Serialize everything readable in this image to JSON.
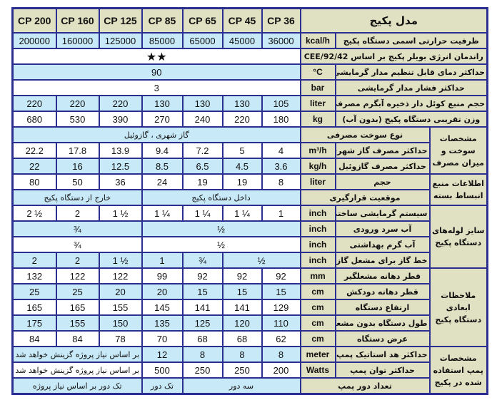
{
  "colors": {
    "border": "#2b2f8f",
    "header_bg": "#e0e0c2",
    "blue_row": "#c8e9f8",
    "white_row": "#ffffff"
  },
  "rows": [
    {
      "name": "header-row",
      "cells": [
        {
          "t": "CP 200",
          "c": "h model"
        },
        {
          "t": "CP 160",
          "c": "h model"
        },
        {
          "t": "CP 125",
          "c": "h model"
        },
        {
          "t": "CP 85",
          "c": "h model"
        },
        {
          "t": "CP 65",
          "c": "h model"
        },
        {
          "t": "CP 45",
          "c": "h model"
        },
        {
          "t": "CP 36",
          "c": "h model"
        },
        {
          "t": "مدل پکیج",
          "c": "h title",
          "span": 3
        }
      ]
    },
    {
      "name": "row-heat-capacity",
      "cells": [
        {
          "t": "200000",
          "c": "b val"
        },
        {
          "t": "160000",
          "c": "b val"
        },
        {
          "t": "125000",
          "c": "b val"
        },
        {
          "t": "85000",
          "c": "b val"
        },
        {
          "t": "65000",
          "c": "b val"
        },
        {
          "t": "45000",
          "c": "b val"
        },
        {
          "t": "36000",
          "c": "b val"
        },
        {
          "t": "kcal/h",
          "c": "h unit"
        },
        {
          "t": "ظرفیت حرارتی اسمی دستگاه پکیج",
          "c": "h lbl",
          "span": 2
        }
      ]
    },
    {
      "name": "row-energy-efficiency",
      "cells": [
        {
          "t": "★★",
          "c": "w star",
          "span": 7
        },
        {
          "t": "راندمان انرژی بویلر پکیج بر اساس 92/42/CEE",
          "c": "h lbl",
          "span": 3
        }
      ]
    },
    {
      "name": "row-max-temperature",
      "cells": [
        {
          "t": "90",
          "c": "b val",
          "span": 7
        },
        {
          "t": "°C",
          "c": "h unit"
        },
        {
          "t": "حداکثر دمای قابل تنظیم مدار گرمایشی",
          "c": "h lbl",
          "span": 2
        }
      ]
    },
    {
      "name": "row-max-pressure",
      "cells": [
        {
          "t": "3",
          "c": "w val",
          "span": 7
        },
        {
          "t": "bar",
          "c": "h unit"
        },
        {
          "t": "حداکثر فشار مدار گرمایشی",
          "c": "h lbl",
          "span": 2
        }
      ]
    },
    {
      "name": "row-coil-tank-volume",
      "cells": [
        {
          "t": "220",
          "c": "b val"
        },
        {
          "t": "220",
          "c": "b val"
        },
        {
          "t": "220",
          "c": "b val"
        },
        {
          "t": "130",
          "c": "b val"
        },
        {
          "t": "130",
          "c": "b val"
        },
        {
          "t": "130",
          "c": "b val"
        },
        {
          "t": "105",
          "c": "b val"
        },
        {
          "t": "liter",
          "c": "h unit"
        },
        {
          "t": "حجم منبع کوئل دار ذخیره آبگرم مصرفی",
          "c": "h lbl",
          "span": 2
        }
      ]
    },
    {
      "name": "row-weight",
      "cells": [
        {
          "t": "680",
          "c": "w val"
        },
        {
          "t": "530",
          "c": "w val"
        },
        {
          "t": "390",
          "c": "w val"
        },
        {
          "t": "270",
          "c": "w val"
        },
        {
          "t": "240",
          "c": "w val"
        },
        {
          "t": "220",
          "c": "w val"
        },
        {
          "t": "180",
          "c": "w val"
        },
        {
          "t": "kg",
          "c": "h unit"
        },
        {
          "t": "وزن تقریبی دستگاه پکیج (بدون آب)",
          "c": "h lbl",
          "span": 2
        }
      ]
    },
    {
      "name": "row-fuel-type",
      "cells": [
        {
          "t": "گاز شهری ، گازوئیل",
          "c": "b txt",
          "span": 7
        },
        {
          "t": "نوع سوخت مصرفی",
          "c": "h lbl",
          "span": 2
        },
        {
          "t": "مشخصات سوخت و میزان مصرف",
          "c": "h grp",
          "rowspan": 3
        }
      ]
    },
    {
      "name": "row-max-gas-consumption",
      "cells": [
        {
          "t": "22.2",
          "c": "w val"
        },
        {
          "t": "17.8",
          "c": "w val"
        },
        {
          "t": "13.9",
          "c": "w val"
        },
        {
          "t": "9.4",
          "c": "w val"
        },
        {
          "t": "7.2",
          "c": "w val"
        },
        {
          "t": "5",
          "c": "w val"
        },
        {
          "t": "4",
          "c": "w val"
        },
        {
          "t": "m³/h",
          "c": "h unit"
        },
        {
          "t": "حداکثر مصرف گاز شهری",
          "c": "h lbl"
        }
      ]
    },
    {
      "name": "row-max-diesel-consumption",
      "cells": [
        {
          "t": "22",
          "c": "b val"
        },
        {
          "t": "16",
          "c": "b val"
        },
        {
          "t": "12.5",
          "c": "b val"
        },
        {
          "t": "8.5",
          "c": "b val"
        },
        {
          "t": "6.5",
          "c": "b val"
        },
        {
          "t": "4.5",
          "c": "b val"
        },
        {
          "t": "3.6",
          "c": "b val"
        },
        {
          "t": "kg/h",
          "c": "h unit"
        },
        {
          "t": "حداکثر مصرف گازوئیل",
          "c": "h lbl"
        }
      ]
    },
    {
      "name": "row-expansion-tank-volume",
      "cells": [
        {
          "t": "80",
          "c": "w val"
        },
        {
          "t": "50",
          "c": "w val"
        },
        {
          "t": "36",
          "c": "w val"
        },
        {
          "t": "24",
          "c": "w val"
        },
        {
          "t": "19",
          "c": "w val"
        },
        {
          "t": "19",
          "c": "w val"
        },
        {
          "t": "8",
          "c": "w val"
        },
        {
          "t": "liter",
          "c": "h unit"
        },
        {
          "t": "حجم",
          "c": "h lbl"
        },
        {
          "t": "اطلاعات منبع انبساط بسته",
          "c": "h grp",
          "rowspan": 2
        }
      ]
    },
    {
      "name": "row-expansion-tank-location",
      "cells": [
        {
          "t": "خارج از دستگاه پکیج",
          "c": "b txt",
          "span": 3
        },
        {
          "t": "داخل دستگاه پکیج",
          "c": "b txt",
          "span": 4
        },
        {
          "t": "موقعیت قرارگیری",
          "c": "h lbl",
          "span": 2
        }
      ]
    },
    {
      "name": "row-heating-pipe",
      "cells": [
        {
          "t": "2 ½",
          "c": "w val"
        },
        {
          "t": "2",
          "c": "w val"
        },
        {
          "t": "1 ½",
          "c": "w val"
        },
        {
          "t": "1 ¼",
          "c": "w val"
        },
        {
          "t": "1 ¼",
          "c": "w val"
        },
        {
          "t": "1 ¼",
          "c": "w val"
        },
        {
          "t": "1",
          "c": "w val"
        },
        {
          "t": "inch",
          "c": "h unit"
        },
        {
          "t": "سیستم گرمایشی ساختمان",
          "c": "h lbl"
        },
        {
          "t": "سایز لوله‌های دستگاه پکیج",
          "c": "h grp",
          "rowspan": 4
        }
      ]
    },
    {
      "name": "row-cold-water-inlet",
      "cells": [
        {
          "t": "¾",
          "c": "b val",
          "span": 3
        },
        {
          "t": "½",
          "c": "b val",
          "span": 4
        },
        {
          "t": "inch",
          "c": "h unit"
        },
        {
          "t": "آب سرد ورودی",
          "c": "h lbl"
        }
      ]
    },
    {
      "name": "row-hot-water",
      "cells": [
        {
          "t": "¾",
          "c": "w val",
          "span": 3
        },
        {
          "t": "½",
          "c": "w val",
          "span": 4
        },
        {
          "t": "inch",
          "c": "h unit"
        },
        {
          "t": "آب گرم بهداشتی",
          "c": "h lbl"
        }
      ]
    },
    {
      "name": "row-gas-line",
      "cells": [
        {
          "t": "2",
          "c": "b val"
        },
        {
          "t": "2",
          "c": "b val"
        },
        {
          "t": "1 ½",
          "c": "b val"
        },
        {
          "t": "1",
          "c": "b val"
        },
        {
          "t": "¾",
          "c": "b val"
        },
        {
          "t": "½",
          "c": "b val",
          "span": 2
        },
        {
          "t": "inch",
          "c": "h unit"
        },
        {
          "t": "خط گاز برای مشعل گازی",
          "c": "h lbl"
        }
      ]
    },
    {
      "name": "row-burner-mouth-diameter",
      "cells": [
        {
          "t": "132",
          "c": "w val"
        },
        {
          "t": "122",
          "c": "w val"
        },
        {
          "t": "122",
          "c": "w val"
        },
        {
          "t": "99",
          "c": "w val"
        },
        {
          "t": "92",
          "c": "w val"
        },
        {
          "t": "92",
          "c": "w val"
        },
        {
          "t": "92",
          "c": "w val"
        },
        {
          "t": "mm",
          "c": "h unit"
        },
        {
          "t": "قطر دهانه مشعلگیر",
          "c": "h lbl"
        },
        {
          "t": "ملاحظات ابعادی دستگاه پکیج",
          "c": "h grp",
          "rowspan": 5
        }
      ]
    },
    {
      "name": "row-chimney-diameter",
      "cells": [
        {
          "t": "25",
          "c": "b val"
        },
        {
          "t": "25",
          "c": "b val"
        },
        {
          "t": "20",
          "c": "b val"
        },
        {
          "t": "20",
          "c": "b val"
        },
        {
          "t": "15",
          "c": "b val"
        },
        {
          "t": "15",
          "c": "b val"
        },
        {
          "t": "15",
          "c": "b val"
        },
        {
          "t": "cm",
          "c": "h unit"
        },
        {
          "t": "قطر دهانه دودکش",
          "c": "h lbl"
        }
      ]
    },
    {
      "name": "row-height",
      "cells": [
        {
          "t": "165",
          "c": "w val"
        },
        {
          "t": "165",
          "c": "w val"
        },
        {
          "t": "155",
          "c": "w val"
        },
        {
          "t": "145",
          "c": "w val"
        },
        {
          "t": "141",
          "c": "w val"
        },
        {
          "t": "141",
          "c": "w val"
        },
        {
          "t": "129",
          "c": "w val"
        },
        {
          "t": "cm",
          "c": "h unit"
        },
        {
          "t": "ارتفاع دستگاه",
          "c": "h lbl"
        }
      ]
    },
    {
      "name": "row-length",
      "cells": [
        {
          "t": "175",
          "c": "b val"
        },
        {
          "t": "155",
          "c": "b val"
        },
        {
          "t": "150",
          "c": "b val"
        },
        {
          "t": "135",
          "c": "b val"
        },
        {
          "t": "125",
          "c": "b val"
        },
        {
          "t": "120",
          "c": "b val"
        },
        {
          "t": "110",
          "c": "b val"
        },
        {
          "t": "cm",
          "c": "h unit"
        },
        {
          "t": "طول دستگاه بدون مشعل",
          "c": "h lbl"
        }
      ]
    },
    {
      "name": "row-width",
      "cells": [
        {
          "t": "84",
          "c": "w val"
        },
        {
          "t": "84",
          "c": "w val"
        },
        {
          "t": "78",
          "c": "w val"
        },
        {
          "t": "70",
          "c": "w val"
        },
        {
          "t": "68",
          "c": "w val"
        },
        {
          "t": "68",
          "c": "w val"
        },
        {
          "t": "62",
          "c": "w val"
        },
        {
          "t": "cm",
          "c": "h unit"
        },
        {
          "t": "عرض دستگاه",
          "c": "h lbl"
        }
      ]
    },
    {
      "name": "row-pump-head",
      "cells": [
        {
          "t": "بر اساس نیاز پروژه گزینش خواهد شد",
          "c": "b txt",
          "span": 3
        },
        {
          "t": "12",
          "c": "b val"
        },
        {
          "t": "8",
          "c": "b val"
        },
        {
          "t": "8",
          "c": "b val"
        },
        {
          "t": "8",
          "c": "b val"
        },
        {
          "t": "meter",
          "c": "h unit"
        },
        {
          "t": "حداکثر هد استاتیک پمپ",
          "c": "h lbl"
        },
        {
          "t": "مشخصات پمپ استفاده شده در پکیج",
          "c": "h grp",
          "rowspan": 3
        }
      ]
    },
    {
      "name": "row-pump-power",
      "cells": [
        {
          "t": "بر اساس نیاز پروژه گزینش خواهد شد",
          "c": "w txt",
          "span": 3
        },
        {
          "t": "500",
          "c": "w val"
        },
        {
          "t": "250",
          "c": "w val"
        },
        {
          "t": "250",
          "c": "w val"
        },
        {
          "t": "200",
          "c": "w val"
        },
        {
          "t": "Watts",
          "c": "h unit"
        },
        {
          "t": "حداکثر توان پمپ",
          "c": "h lbl"
        }
      ]
    },
    {
      "name": "row-pump-speeds",
      "cells": [
        {
          "t": "تک دور بر اساس نیاز پروژه",
          "c": "b txt",
          "span": 3
        },
        {
          "t": "تک دور",
          "c": "b txt"
        },
        {
          "t": "سه دور",
          "c": "b txt",
          "span": 3
        },
        {
          "t": "تعداد دور پمپ",
          "c": "h lbl",
          "span": 2
        }
      ]
    }
  ]
}
